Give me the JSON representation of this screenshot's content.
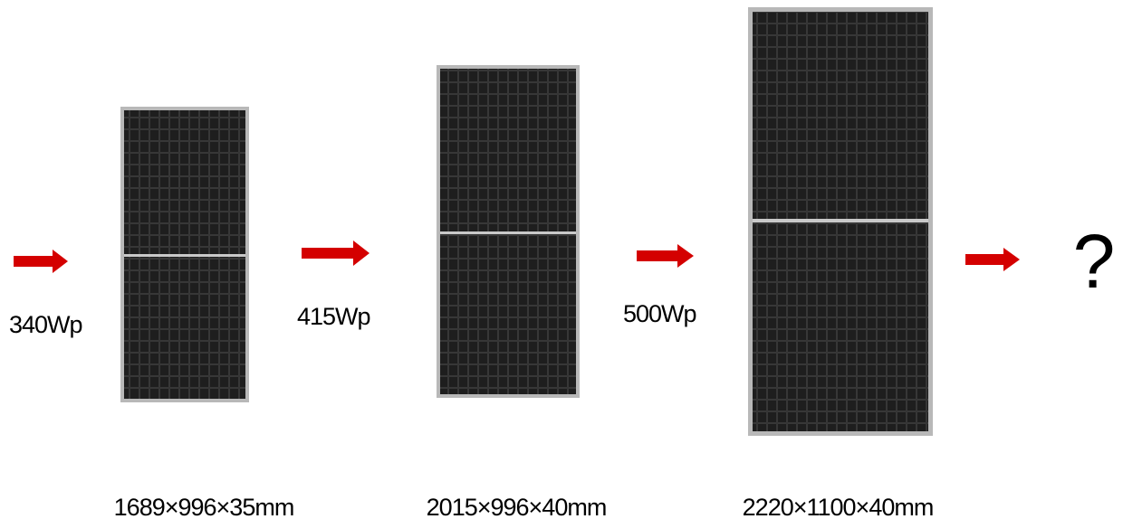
{
  "steps": [
    {
      "power": "340Wp",
      "size": "1689×996×35mm"
    },
    {
      "power": "415Wp",
      "size": "2015×996×40mm"
    },
    {
      "power": "500Wp",
      "size": "2220×1100×40mm"
    }
  ],
  "next": "?"
}
